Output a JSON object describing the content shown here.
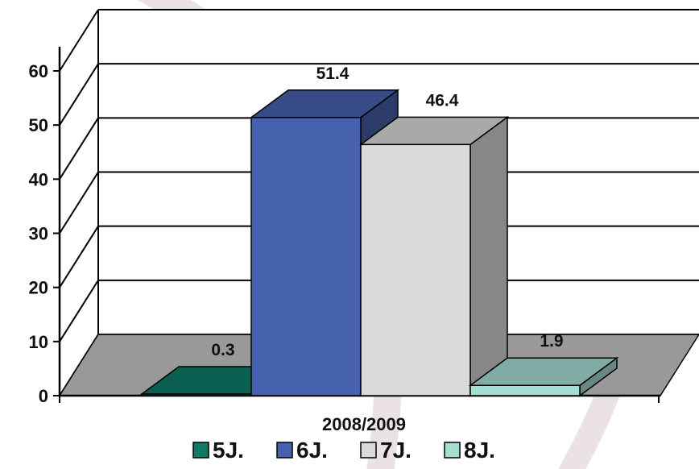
{
  "chart_data": {
    "type": "bar",
    "categories": [
      "2008/2009"
    ],
    "series": [
      {
        "name": "5J.",
        "values": [
          0.3
        ],
        "data_label": "0.3",
        "color": "#0e7a66"
      },
      {
        "name": "6J.",
        "values": [
          51.4
        ],
        "data_label": "51.4",
        "color": "#4661ad"
      },
      {
        "name": "7J.",
        "values": [
          46.4
        ],
        "data_label": "46.4",
        "color": "#d9d9d9"
      },
      {
        "name": "8J.",
        "values": [
          1.9
        ],
        "data_label": "1.9",
        "color": "#a6ddd3"
      }
    ],
    "y_ticks": [
      "0",
      "10",
      "20",
      "30",
      "40",
      "50",
      "60"
    ],
    "ylim": [
      0,
      60
    ],
    "grid": true,
    "three_d": true,
    "legend_position": "bottom",
    "colors": {
      "wall": "#ffffff",
      "floor": "#999999",
      "grid": "#000000",
      "watermark": "#ebe3e3"
    }
  }
}
